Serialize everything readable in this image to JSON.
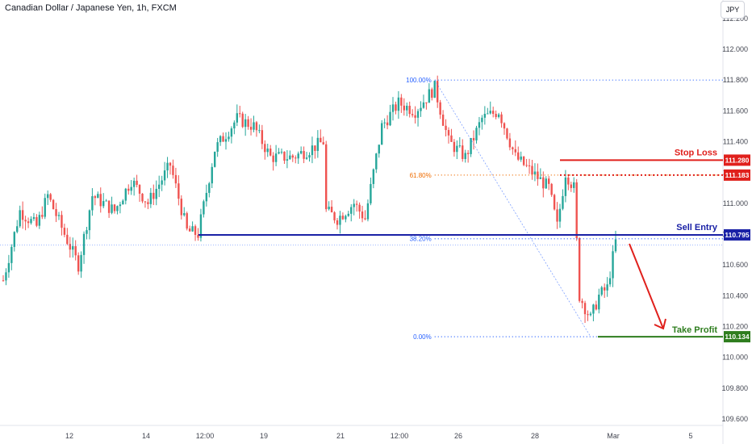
{
  "header": {
    "title": "Canadian Dollar / Japanese Yen, 1h, FXCM",
    "currency": "JPY"
  },
  "colors": {
    "up": "#26a69a",
    "down": "#ef5350",
    "stop_loss": "#e0201c",
    "sell_entry": "#1a21a6",
    "take_profit": "#2e7d1e",
    "fib_line": "#2962ff",
    "fib_618_label": "#ef6c00",
    "axis_text": "#434651"
  },
  "chart_data": {
    "type": "candlestick",
    "title": "Canadian Dollar / Japanese Yen, 1h, FXCM",
    "ylim": [
      109.55,
      112.2
    ],
    "y_ticks": [
      "109.600",
      "109.800",
      "110.000",
      "110.200",
      "110.400",
      "110.600",
      "110.800",
      "111.000",
      "111.200",
      "111.400",
      "111.600",
      "111.800",
      "112.000",
      "112.200"
    ],
    "x_ticks": [
      "12",
      "14",
      "12:00",
      "19",
      "21",
      "12:00",
      "26",
      "28",
      "Mar",
      "5"
    ],
    "price_path": [
      {
        "i": 0,
        "p": 110.5
      },
      {
        "i": 6,
        "p": 110.95
      },
      {
        "i": 12,
        "p": 110.85
      },
      {
        "i": 16,
        "p": 111.05
      },
      {
        "i": 22,
        "p": 110.8
      },
      {
        "i": 27,
        "p": 110.6
      },
      {
        "i": 32,
        "p": 111.05
      },
      {
        "i": 40,
        "p": 110.95
      },
      {
        "i": 46,
        "p": 111.15
      },
      {
        "i": 52,
        "p": 111.0
      },
      {
        "i": 60,
        "p": 111.25
      },
      {
        "i": 66,
        "p": 110.82
      },
      {
        "i": 70,
        "p": 110.8
      },
      {
        "i": 76,
        "p": 111.35
      },
      {
        "i": 84,
        "p": 111.55
      },
      {
        "i": 90,
        "p": 111.5
      },
      {
        "i": 96,
        "p": 111.3
      },
      {
        "i": 104,
        "p": 111.3
      },
      {
        "i": 110,
        "p": 111.35
      },
      {
        "i": 115,
        "p": 111.4
      },
      {
        "i": 116,
        "p": 110.95
      },
      {
        "i": 120,
        "p": 110.9
      },
      {
        "i": 126,
        "p": 111.0
      },
      {
        "i": 130,
        "p": 110.9
      },
      {
        "i": 136,
        "p": 111.5
      },
      {
        "i": 142,
        "p": 111.65
      },
      {
        "i": 148,
        "p": 111.6
      },
      {
        "i": 155,
        "p": 111.75
      },
      {
        "i": 160,
        "p": 111.4
      },
      {
        "i": 166,
        "p": 111.3
      },
      {
        "i": 172,
        "p": 111.55
      },
      {
        "i": 178,
        "p": 111.6
      },
      {
        "i": 184,
        "p": 111.3
      },
      {
        "i": 190,
        "p": 111.2
      },
      {
        "i": 196,
        "p": 111.1
      },
      {
        "i": 199,
        "p": 110.85
      },
      {
        "i": 202,
        "p": 111.2
      },
      {
        "i": 205,
        "p": 111.1
      },
      {
        "i": 207,
        "p": 110.4
      },
      {
        "i": 211,
        "p": 110.25
      },
      {
        "i": 214,
        "p": 110.4
      },
      {
        "i": 217,
        "p": 110.45
      },
      {
        "i": 220,
        "p": 110.75
      }
    ],
    "fib_levels": [
      {
        "label": "100.00%",
        "price": 111.8
      },
      {
        "label": "61.80%",
        "price": 111.183
      },
      {
        "label": "38.20%",
        "price": 110.77
      },
      {
        "label": "0.00%",
        "price": 110.134
      }
    ],
    "levels": [
      {
        "name": "Stop Loss",
        "price": 111.28,
        "label": "111.280"
      },
      {
        "name": "stop-loss-dotted",
        "price": 111.183,
        "label": "111.183"
      },
      {
        "name": "Sell Entry",
        "price": 110.795,
        "label": "110.795"
      },
      {
        "name": "Take Profit",
        "price": 110.134,
        "label": "110.134"
      }
    ]
  },
  "annotations": {
    "stop_loss": "Stop Loss",
    "sell_entry": "Sell Entry",
    "take_profit": "Take Profit"
  }
}
